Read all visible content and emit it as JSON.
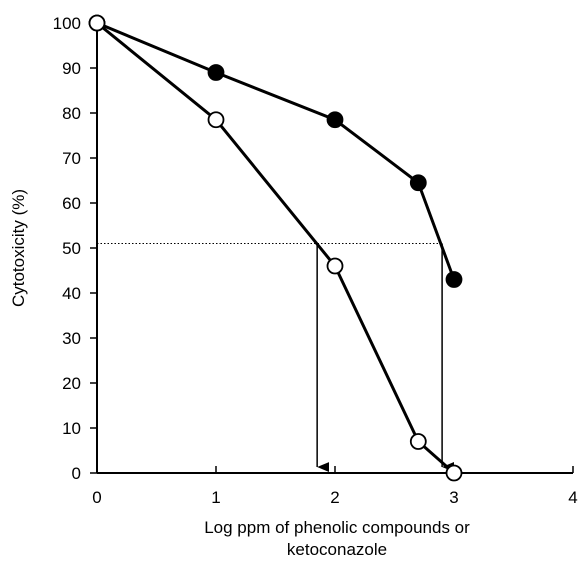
{
  "chart_data": {
    "type": "line",
    "title": "",
    "xlabel_lines": [
      "Log ppm of phenolic compounds or",
      "ketoconazole"
    ],
    "ylabel": "Cytotoxicity  (%)",
    "xlim": [
      0,
      4
    ],
    "ylim": [
      0,
      100
    ],
    "x_ticks": [
      "0",
      "1",
      "2",
      "3",
      "4"
    ],
    "y_ticks": [
      "0",
      "10",
      "20",
      "30",
      "40",
      "50",
      "60",
      "70",
      "80",
      "90",
      "100"
    ],
    "grid": false,
    "series": [
      {
        "marker": "filled-circle",
        "color": "#000000",
        "points": [
          [
            0,
            100
          ],
          [
            1,
            89
          ],
          [
            2,
            78.5
          ],
          [
            2.7,
            64.5
          ],
          [
            3,
            43
          ]
        ]
      },
      {
        "marker": "open-circle",
        "color": "#000000",
        "points": [
          [
            0,
            100
          ],
          [
            1,
            78.5
          ],
          [
            2,
            46
          ],
          [
            2.7,
            7
          ],
          [
            3,
            0
          ]
        ]
      }
    ],
    "reference_line": {
      "y": 51,
      "style": "dotted",
      "x_start": 0,
      "x_end": 2.9
    },
    "arrows": [
      {
        "x": 1.85,
        "y_from": 51,
        "y_to": 0
      },
      {
        "x": 2.9,
        "y_from": 51,
        "y_to": 0
      }
    ]
  }
}
